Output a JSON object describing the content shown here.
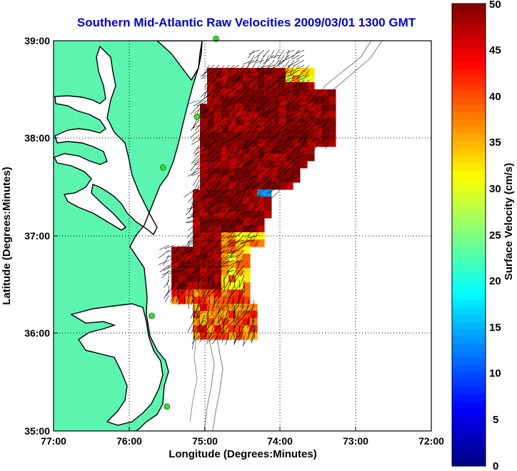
{
  "title": "Southern Mid-Atlantic Raw Velocities 2009/03/01 1300 GMT",
  "map": {
    "xlabel": "Longitude (Degrees:Minutes)",
    "ylabel": "Latitude (Degrees:Minutes)",
    "lon_range": [
      -77,
      -72
    ],
    "lat_range": [
      35,
      39
    ],
    "x_ticks": [
      "77:00",
      "76:00",
      "75:00",
      "74:00",
      "73:00",
      "72:00"
    ],
    "y_ticks": [
      "39:00",
      "38:00",
      "37:00",
      "36:00",
      "35:00"
    ],
    "grid": "dotted",
    "land_color": "#5cf5b0",
    "coast_color": "#000000",
    "bathymetry_color": "#999999",
    "station_color": "#33dd33",
    "stations": [
      {
        "lon": -74.85,
        "lat": 39.02
      },
      {
        "lon": -75.1,
        "lat": 38.22
      },
      {
        "lon": -75.55,
        "lat": 37.7
      },
      {
        "lon": -75.7,
        "lat": 36.18
      },
      {
        "lon": -75.5,
        "lat": 35.25
      }
    ]
  },
  "colorbar": {
    "label": "Surface Velocity (cm/s)",
    "ticks": [
      "0",
      "5",
      "10",
      "15",
      "20",
      "25",
      "30",
      "35",
      "40",
      "45",
      "50"
    ],
    "min": 0,
    "max": 50
  }
}
